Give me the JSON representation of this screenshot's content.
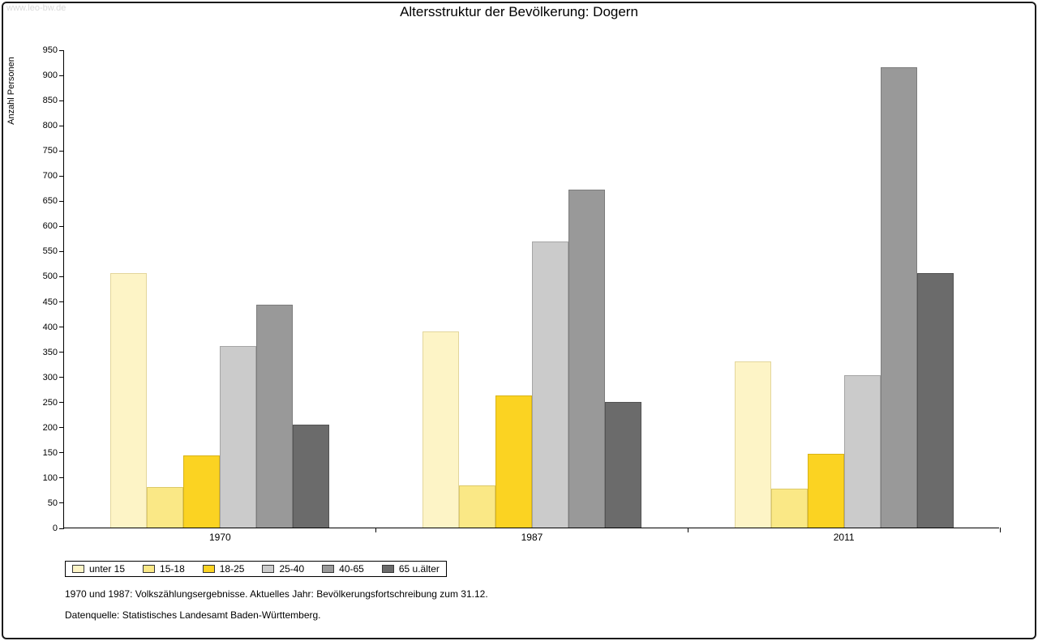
{
  "watermark": "www.leo-bw.de",
  "title": "Altersstruktur der Bevölkerung: Dogern",
  "footnotes": {
    "line1": "1970 und 1987: Volkszählungsergebnisse. Aktuelles Jahr: Bevölkerungsfortschreibung zum 31.12.",
    "line2": "Datenquelle: Statistisches Landesamt Baden-Württemberg."
  },
  "chart_data": {
    "type": "bar",
    "title": "Altersstruktur der Bevölkerung: Dogern",
    "xlabel": "",
    "ylabel": "Anzahl Personen",
    "ylim": [
      0,
      950
    ],
    "ytick_step": 50,
    "grid": false,
    "legend_position": "bottom-left",
    "categories": [
      "1970",
      "1987",
      "2011"
    ],
    "series": [
      {
        "name": "unter 15",
        "color": "#FDF4C6",
        "border_color": "#E3D69C",
        "values": [
          505,
          390,
          330
        ]
      },
      {
        "name": "15-18",
        "color": "#FAE886",
        "border_color": "#DCC968",
        "values": [
          80,
          83,
          77
        ]
      },
      {
        "name": "18-25",
        "color": "#FBD322",
        "border_color": "#D8B318",
        "values": [
          143,
          262,
          146
        ]
      },
      {
        "name": "25-40",
        "color": "#CBCBCB",
        "border_color": "#A5A5A5",
        "values": [
          360,
          568,
          303
        ]
      },
      {
        "name": "40-65",
        "color": "#999999",
        "border_color": "#7C7C7C",
        "values": [
          443,
          672,
          915
        ]
      },
      {
        "name": "65 u.älter",
        "color": "#6B6B6B",
        "border_color": "#535353",
        "values": [
          204,
          250,
          505
        ]
      }
    ]
  }
}
